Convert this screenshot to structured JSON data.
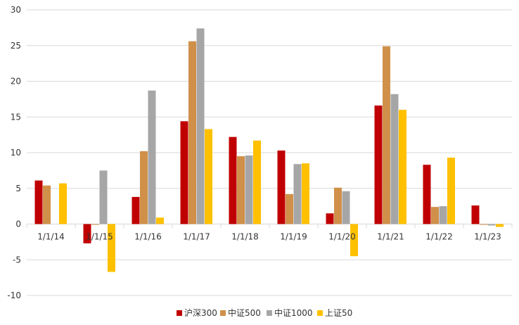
{
  "chart_data": {
    "type": "bar",
    "categories": [
      "1/1/14",
      "1/1/15",
      "1/1/16",
      "1/1/17",
      "1/1/18",
      "1/1/19",
      "1/1/20",
      "1/1/21",
      "1/1/22",
      "1/1/23"
    ],
    "series": [
      {
        "name": "沪深300",
        "color": "#C00000",
        "values": [
          6.1,
          -2.7,
          3.8,
          14.4,
          12.2,
          10.3,
          1.5,
          16.6,
          8.3,
          2.6
        ]
      },
      {
        "name": "中证500",
        "color": "#D0904A",
        "values": [
          5.4,
          -0.1,
          10.2,
          25.6,
          9.5,
          4.2,
          5.1,
          24.9,
          2.4,
          -0.1
        ]
      },
      {
        "name": "中证1000",
        "color": "#A6A6A6",
        "values": [
          0.0,
          7.5,
          18.7,
          27.4,
          9.6,
          8.4,
          4.6,
          18.2,
          2.5,
          -0.2
        ]
      },
      {
        "name": "上证50",
        "color": "#FFC000",
        "values": [
          5.7,
          -6.7,
          0.9,
          13.3,
          11.7,
          8.5,
          -4.5,
          16.0,
          9.3,
          -0.4
        ]
      }
    ],
    "yticks": [
      "30",
      "25",
      "20",
      "15",
      "10",
      "5",
      "0",
      "-5",
      "-10"
    ],
    "ylim": [
      -10,
      30
    ],
    "grid": true,
    "legend_position": "bottom",
    "title": "",
    "xlabel": "",
    "ylabel": ""
  }
}
